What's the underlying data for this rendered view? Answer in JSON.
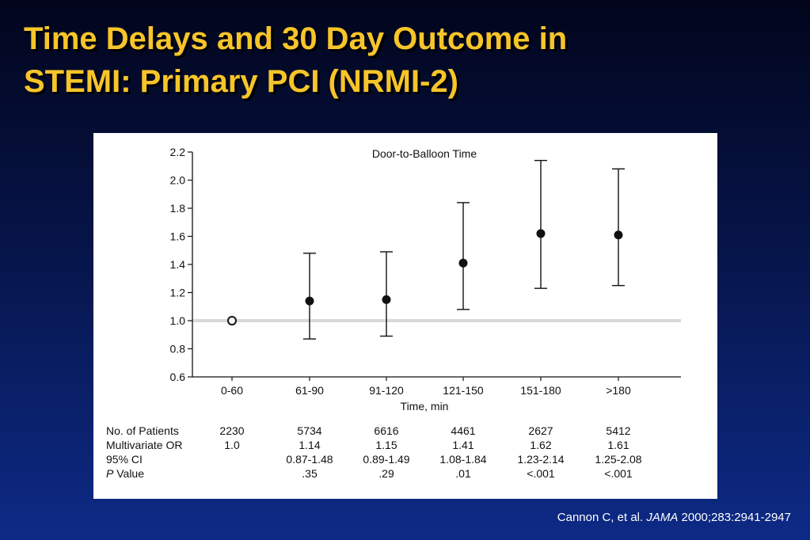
{
  "slide": {
    "title_line1": "Time Delays and 30 Day Outcome in",
    "title_line2": "STEMI: Primary PCI (NRMI-2)"
  },
  "citation": {
    "authors": "Cannon C, et al.",
    "journal": "JAMA",
    "details": "2000;283:2941-2947"
  },
  "chart_data": {
    "type": "scatter",
    "title": "Door-to-Balloon Time",
    "xlabel": "Time, min",
    "ylabel": "",
    "categories": [
      "0-60",
      "61-90",
      "91-120",
      "121-150",
      "151-180",
      ">180"
    ],
    "y_ticks": [
      "0.6",
      "0.8",
      "1.0",
      "1.2",
      "1.4",
      "1.6",
      "1.8",
      "2.0",
      "2.2"
    ],
    "ylim": [
      0.6,
      2.2
    ],
    "reference_line": 1.0,
    "reference_color": "#d8d8d8",
    "grid": false,
    "series": [
      {
        "values": [
          1.0,
          1.14,
          1.15,
          1.41,
          1.62,
          1.61
        ],
        "ci_low": [
          null,
          0.87,
          0.89,
          1.08,
          1.23,
          1.25
        ],
        "ci_high": [
          null,
          1.48,
          1.49,
          1.84,
          2.14,
          2.08
        ],
        "reference_marker": "open circle (first category)"
      }
    ]
  },
  "table": {
    "rows": [
      {
        "label": "No. of Patients",
        "cells": [
          "2230",
          "5734",
          "6616",
          "4461",
          "2627",
          "5412"
        ]
      },
      {
        "label": "Multivariate OR",
        "cells": [
          "1.0",
          "1.14",
          "1.15",
          "1.41",
          "1.62",
          "1.61"
        ]
      },
      {
        "label": "95% CI",
        "cells": [
          "",
          "0.87-1.48",
          "0.89-1.49",
          "1.08-1.84",
          "1.23-2.14",
          "1.25-2.08"
        ]
      },
      {
        "label_italic": "P",
        "label_rest": " Value",
        "cells": [
          "",
          ".35",
          ".29",
          ".01",
          "<.001",
          "<.001"
        ]
      }
    ]
  }
}
